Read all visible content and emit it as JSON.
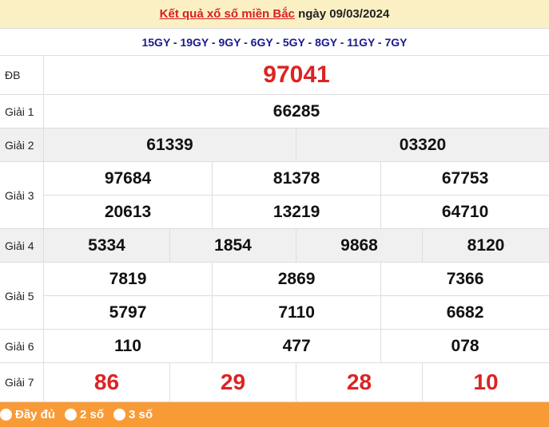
{
  "header": {
    "title_link": "Kết quả xổ số miền Bắc",
    "date_text": "ngày 09/03/2024"
  },
  "codes": "15GY - 19GY - 9GY - 6GY - 5GY - 8GY - 11GY - 7GY",
  "prizes": {
    "db": {
      "label": "ĐB",
      "values": [
        "97041"
      ]
    },
    "g1": {
      "label": "Giải 1",
      "values": [
        "66285"
      ]
    },
    "g2": {
      "label": "Giải 2",
      "values": [
        "61339",
        "03320"
      ]
    },
    "g3": {
      "label": "Giải 3",
      "values": [
        "97684",
        "81378",
        "67753",
        "20613",
        "13219",
        "64710"
      ]
    },
    "g4": {
      "label": "Giải 4",
      "values": [
        "5334",
        "1854",
        "9868",
        "8120"
      ]
    },
    "g5": {
      "label": "Giải 5",
      "values": [
        "7819",
        "2869",
        "7366",
        "5797",
        "7110",
        "6682"
      ]
    },
    "g6": {
      "label": "Giải 6",
      "values": [
        "110",
        "477",
        "078"
      ]
    },
    "g7": {
      "label": "Giải 7",
      "values": [
        "86",
        "29",
        "28",
        "10"
      ]
    }
  },
  "footer": {
    "options": [
      "Đầy đủ",
      "2 số",
      "3 số"
    ]
  },
  "colors": {
    "accent_red": "#dc2323",
    "footer_orange": "#f89b36",
    "header_bg": "#fbf0c4",
    "code_blue": "#1a1a8c"
  }
}
